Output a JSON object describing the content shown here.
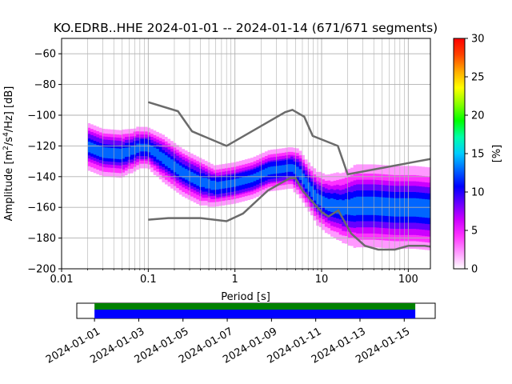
{
  "chart_data": {
    "type": "heatmap",
    "title": "KO.EDRB..HHE   2024-01-01 -- 2024-01-14  (671/671 segments)",
    "xlabel": "Period [s]",
    "ylabel_main": "Amplitude [m",
    "ylabel_sup1": "2",
    "ylabel_mid": "/s",
    "ylabel_sup2": "4",
    "ylabel_end": "/Hz] [dB]",
    "x_scale": "log",
    "xlim": [
      0.01,
      180
    ],
    "ylim": [
      -200,
      -50
    ],
    "x_ticks": [
      {
        "value": 0.01,
        "label": "0.01"
      },
      {
        "value": 0.1,
        "label": "0.1"
      },
      {
        "value": 1,
        "label": "1"
      },
      {
        "value": 10,
        "label": "10"
      },
      {
        "value": 100,
        "label": "100"
      }
    ],
    "y_ticks": [
      {
        "value": -60,
        "label": "−60"
      },
      {
        "value": -80,
        "label": "−80"
      },
      {
        "value": -100,
        "label": "−100"
      },
      {
        "value": -120,
        "label": "−120"
      },
      {
        "value": -140,
        "label": "−140"
      },
      {
        "value": -160,
        "label": "−160"
      },
      {
        "value": -180,
        "label": "−180"
      },
      {
        "value": -200,
        "label": "−200"
      }
    ],
    "grid": true,
    "nhnm": [
      [
        0.1,
        -168
      ],
      [
        0.17,
        -167
      ],
      [
        0.4,
        -167
      ],
      [
        0.8,
        -169
      ],
      [
        1.24,
        -164
      ],
      [
        2.4,
        -149
      ],
      [
        4.3,
        -141
      ],
      [
        5,
        -141
      ],
      [
        6,
        -149
      ],
      [
        10,
        -163
      ],
      [
        12,
        -166
      ],
      [
        15.6,
        -162
      ],
      [
        21.9,
        -177
      ],
      [
        31.6,
        -185
      ],
      [
        45,
        -187.5
      ],
      [
        70,
        -187.5
      ],
      [
        101,
        -185
      ],
      [
        154,
        -185
      ],
      [
        180,
        -185.5
      ]
    ],
    "nlnm": [
      [
        0.1,
        -91.5
      ],
      [
        0.22,
        -97.4
      ],
      [
        0.32,
        -110.5
      ],
      [
        0.8,
        -120
      ],
      [
        3.8,
        -98
      ],
      [
        4.6,
        -96.5
      ],
      [
        6.3,
        -101
      ],
      [
        7.9,
        -113.5
      ],
      [
        15.4,
        -120
      ],
      [
        20,
        -138.5
      ],
      [
        180,
        -128.5
      ]
    ],
    "model_color": "#6b6b6b",
    "density_bands": [
      {
        "x": [
          0.02,
          0.03,
          0.05,
          0.08,
          0.1,
          0.15,
          0.25,
          0.4,
          0.6,
          1,
          1.6,
          2.5,
          3.5,
          4.5,
          5.5,
          7,
          9,
          12,
          18,
          25,
          40,
          70,
          120,
          180
        ],
        "center": [
          -120,
          -124,
          -125,
          -121,
          -121,
          -128,
          -137,
          -143,
          -146,
          -144,
          -141,
          -136,
          -135,
          -134,
          -137,
          -146,
          -154,
          -158,
          -160,
          -159,
          -159,
          -160,
          -160,
          -161
        ],
        "width_db": [
          8,
          8,
          8,
          7,
          7,
          8,
          8,
          8,
          7,
          7,
          7,
          7,
          7,
          7,
          8,
          8,
          9,
          10,
          12,
          14,
          14,
          14,
          14,
          14
        ]
      }
    ],
    "colorbar": {
      "label": "[%]",
      "min": 0,
      "max": 30,
      "ticks": [
        {
          "value": 0,
          "label": "0"
        },
        {
          "value": 5,
          "label": "5"
        },
        {
          "value": 10,
          "label": "10"
        },
        {
          "value": 15,
          "label": "15"
        },
        {
          "value": 20,
          "label": "20"
        },
        {
          "value": 25,
          "label": "25"
        },
        {
          "value": 30,
          "label": "30"
        }
      ],
      "colors": [
        "#ffffff",
        "#ff99ff",
        "#ff33ff",
        "#cc00ff",
        "#6600ff",
        "#0000ff",
        "#0066ff",
        "#00ccff",
        "#00ffaa",
        "#00ff00",
        "#88ff00",
        "#ffff00",
        "#ffaa00",
        "#ff4400",
        "#ff0000"
      ]
    },
    "timeline": {
      "date_ticks": [
        "2024-01-01",
        "2024-01-03",
        "2024-01-05",
        "2024-01-07",
        "2024-01-09",
        "2024-01-11",
        "2024-01-13",
        "2024-01-15"
      ],
      "range_days": [
        -0.8,
        15.4
      ],
      "coverage_start_day": 0,
      "coverage_end_day": 14.5,
      "bar_colors": [
        "#008000",
        "#0000ff"
      ]
    }
  }
}
